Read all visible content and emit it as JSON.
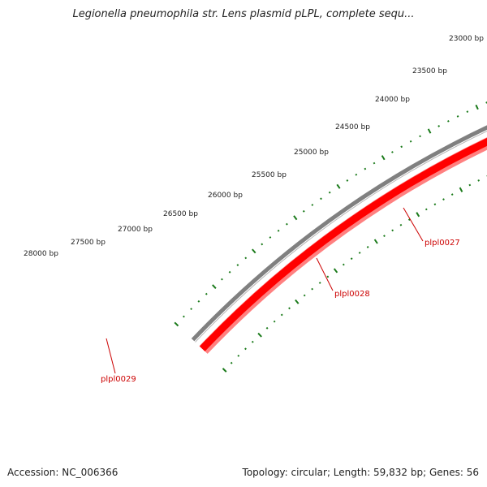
{
  "title": "Legionella pneumophila str. Lens plasmid pLPL, complete sequ...",
  "footer": {
    "accession": "Accession: NC_006366",
    "topology": "Topology: circular; Length: 59,832 bp; Genes: 56"
  },
  "colors": {
    "backbone": "#808080",
    "gene": "#ff0000",
    "gene_shadow": "#ff8080",
    "ticks": "#1a7a1a",
    "gene_label": "#cc0000",
    "callout": "#cc0000"
  },
  "scale_labels": [
    "23000 bp",
    "23500 bp",
    "24000 bp",
    "24500 bp",
    "25000 bp",
    "25500 bp",
    "26000 bp",
    "26500 bp",
    "27000 bp",
    "27500 bp",
    "28000 bp"
  ],
  "genes": [
    {
      "label": "plpl0027"
    },
    {
      "label": "plpl0028"
    },
    {
      "label": "plpl0029"
    }
  ]
}
